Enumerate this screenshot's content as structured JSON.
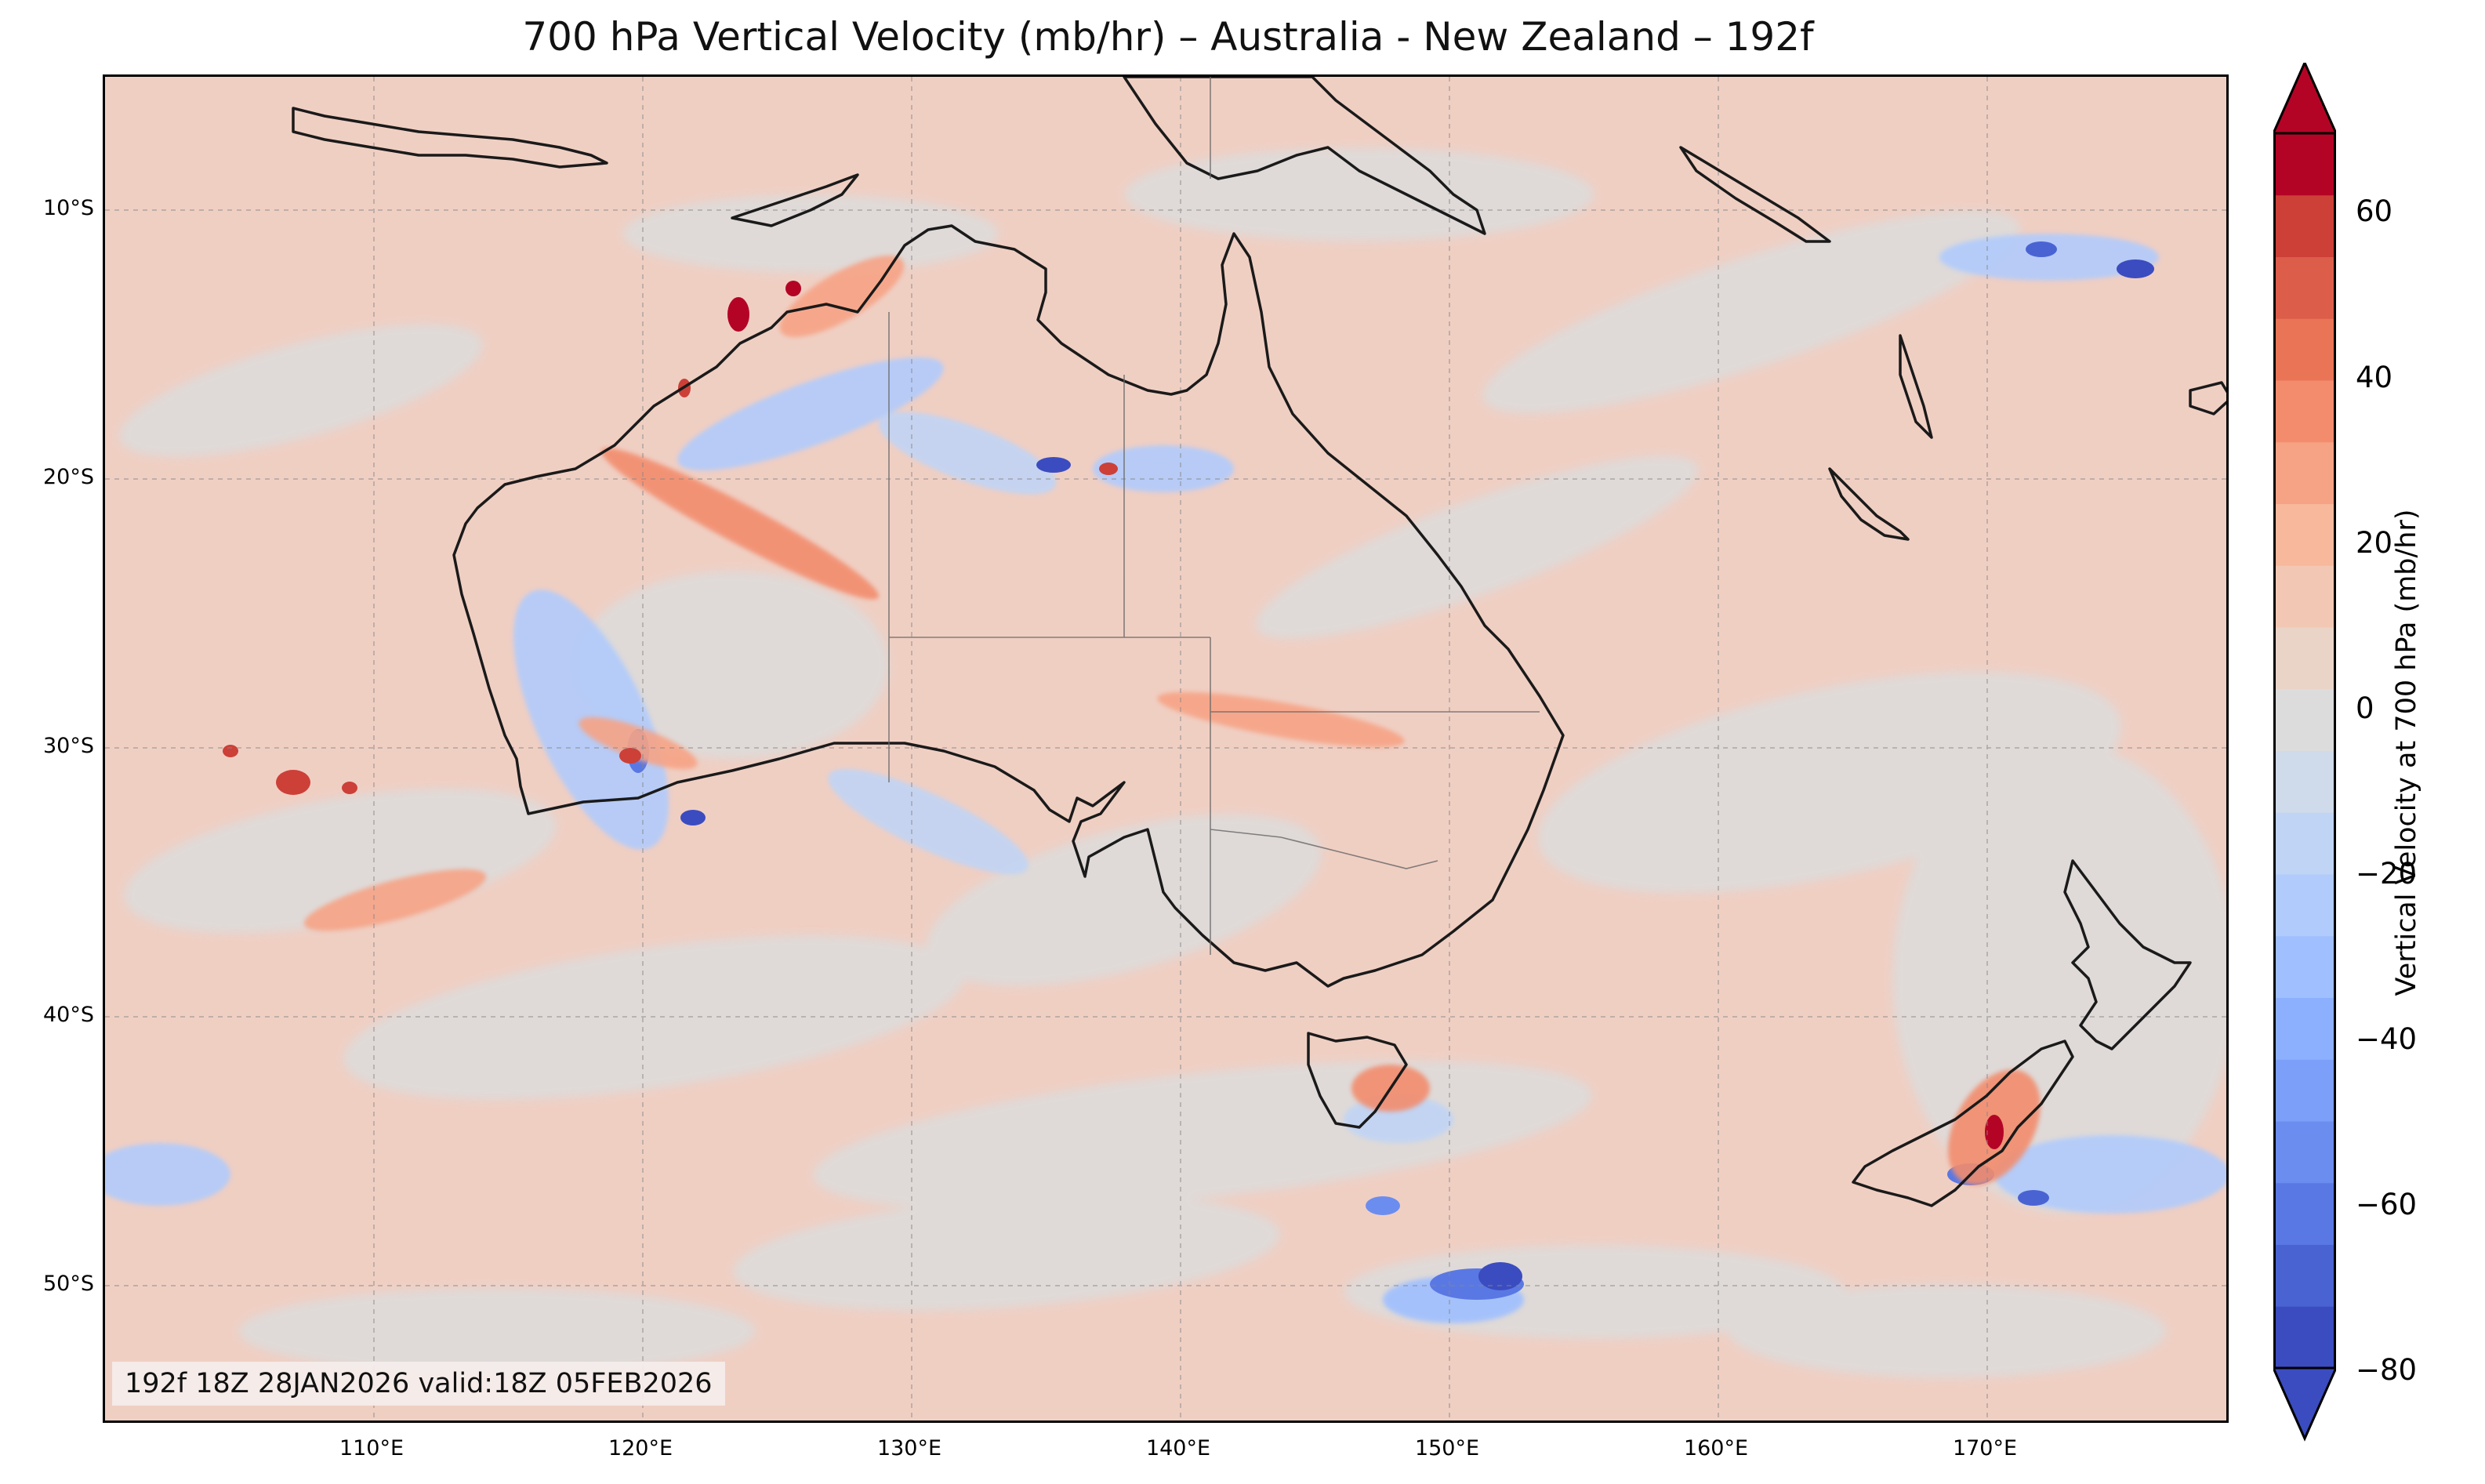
{
  "title": "700 hPa Vertical Velocity (mb/hr) – Australia - New Zealand – 192f",
  "info_box": "192f 18Z 28JAN2026 valid:18Z 05FEB2026",
  "axes": {
    "lat_labels": [
      "10°S",
      "20°S",
      "30°S",
      "40°S",
      "50°S"
    ],
    "lon_labels": [
      "110°E",
      "120°E",
      "130°E",
      "140°E",
      "150°E",
      "160°E",
      "170°E"
    ]
  },
  "colorbar": {
    "title": "Vertical Velocity at 700 hPa (mb/hr)",
    "tick_labels": [
      "60",
      "40",
      "20",
      "0",
      "−20",
      "−40",
      "−60",
      "−80"
    ],
    "levels": [
      -80,
      -75,
      -70,
      -65,
      -60,
      -55,
      -50,
      -45,
      -40,
      -35,
      -30,
      -25,
      -20,
      -15,
      -10,
      -5,
      0,
      5,
      10,
      15,
      20,
      25,
      30,
      35,
      40,
      45,
      50,
      55,
      60,
      65,
      70
    ],
    "colors": [
      "#3b4cc0",
      "#4a63d3",
      "#5a78e3",
      "#6b8df0",
      "#7c9ff9",
      "#8db0fe",
      "#9fbfff",
      "#b0cbfc",
      "#c0d4f5",
      "#cfdaea",
      "#dddcdc",
      "#ead4c8",
      "#f2c8b4",
      "#f7b89c",
      "#f6a385",
      "#f28c6d",
      "#e97456",
      "#dc5d4a",
      "#cc4038",
      "#b40426"
    ],
    "over_color": "#b40426",
    "under_color": "#3b4cc0"
  },
  "colors": {
    "land_outline": "#1a1a1a",
    "background_field": "#f0cfc3",
    "neutral_field": "#dcdcdc"
  }
}
